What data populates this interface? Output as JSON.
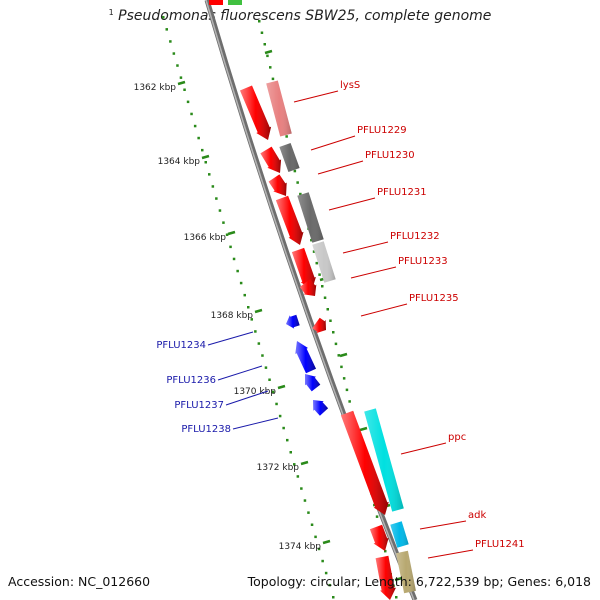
{
  "title": {
    "superscript": "1",
    "text": "Pseudomonas fluorescens SBW25, complete genome"
  },
  "footer": {
    "accession": "Accession: NC_012660",
    "summary": "Topology: circular; Length: 6,722,539 bp; Genes: 6,018"
  },
  "colors": {
    "backbone": "#8a8a8a",
    "forward_gene": "#ff0000",
    "reverse_gene": "#0000ff",
    "forward_label": "#cc0000",
    "reverse_label": "#1a1aaa",
    "ruler": "#2a8a1a"
  },
  "ruler": {
    "ticks": [
      {
        "label": "1362 kbp"
      },
      {
        "label": "1364 kbp"
      },
      {
        "label": "1366 kbp"
      },
      {
        "label": "1368 kbp"
      },
      {
        "label": "1370 kbp"
      },
      {
        "label": "1372 kbp"
      },
      {
        "label": "1374 kbp"
      }
    ]
  },
  "genes": {
    "forward": [
      {
        "label": "lysS",
        "product_color": "#e88080"
      },
      {
        "label": "PFLU1229",
        "product_color": "#686868"
      },
      {
        "label": "PFLU1230",
        "product_color": ""
      },
      {
        "label": "PFLU1231",
        "product_color": "#6a6a6a"
      },
      {
        "label": "PFLU1232",
        "product_color": "#c8c8c8"
      },
      {
        "label": "PFLU1233",
        "product_color": ""
      },
      {
        "label": "PFLU1235",
        "product_color": ""
      },
      {
        "label": "ppc",
        "product_color": "#00e0e0"
      },
      {
        "label": "adk",
        "product_color": "#00b8e8"
      },
      {
        "label": "PFLU1241",
        "product_color": "#b8a870"
      }
    ],
    "reverse": [
      {
        "label": "PFLU1234"
      },
      {
        "label": "PFLU1236"
      },
      {
        "label": "PFLU1237"
      },
      {
        "label": "PFLU1238"
      }
    ]
  }
}
